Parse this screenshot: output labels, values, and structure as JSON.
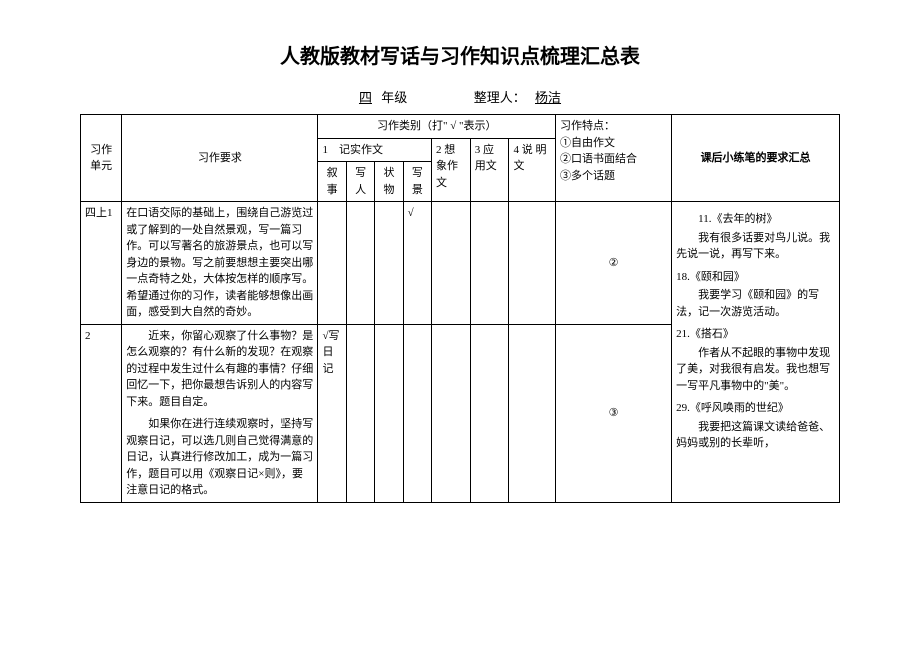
{
  "title": "人教版教材写话与习作知识点梳理汇总表",
  "meta": {
    "grade_label_prefix": "",
    "grade": "四",
    "grade_label_suffix": "年级",
    "organizer_label": "整理人：",
    "organizer": "杨洁"
  },
  "headers": {
    "unit": "习作单元",
    "requirement": "习作要求",
    "category": "习作类别（打\" √ \"表示）",
    "narrative": "1　记实作文",
    "narr_event": "叙事",
    "narr_person": "写人",
    "narr_object": "状物",
    "narr_scene": "写景",
    "imagination": "2 想象作文",
    "application": "3 应用文",
    "explanation": "4 说 明文",
    "features": "习作特点：\n①自由作文\n②口语书面结合\n③多个话题",
    "notes": "课后小练笔的要求汇总"
  },
  "rows": {
    "r1": {
      "unit": "四上1",
      "req": "在口语交际的基础上，围绕自己游览过或了解到的一处自然景观，写一篇习作。可以写著名的旅游景点，也可以写身边的景物。写之前要想想主要突出哪一点奇特之处，大体按怎样的顺序写。希望通过你的习作，读者能够想像出画面，感受到大自然的奇妙。",
      "scene": "√",
      "feature": "②"
    },
    "r2": {
      "unit": "2",
      "req_p1": "近来，你留心观察了什么事物？是怎么观察的？有什么新的发现？在观察的过程中发生过什么有趣的事情？仔细回忆一下，把你最想告诉别人的内容写下来。题目自定。",
      "req_p2": "如果你在进行连续观察时，坚持写观察日记，可以选几则自己觉得满意的日记，认真进行修改加工，成为一篇习作，题目可以用《观察日记×则》，要注意日记的格式。",
      "event": "√写日记",
      "feature": "③"
    }
  },
  "notes": {
    "n1_title": "11.《去年的树》",
    "n1_body": "我有很多话要对鸟儿说。我先说一说，再写下来。",
    "n2_title": "18.《颐和园》",
    "n2_body": "我要学习《颐和园》的写法，记一次游览活动。",
    "n3_title": "21.《搭石》",
    "n3_body": "作者从不起眼的事物中发现了美，对我很有启发。我也想写一写平凡事物中的\"美\"。",
    "n4_title": "29.《呼风唤雨的世纪》",
    "n4_body": "我要把这篇课文读给爸爸、妈妈或别的长辈听，"
  }
}
